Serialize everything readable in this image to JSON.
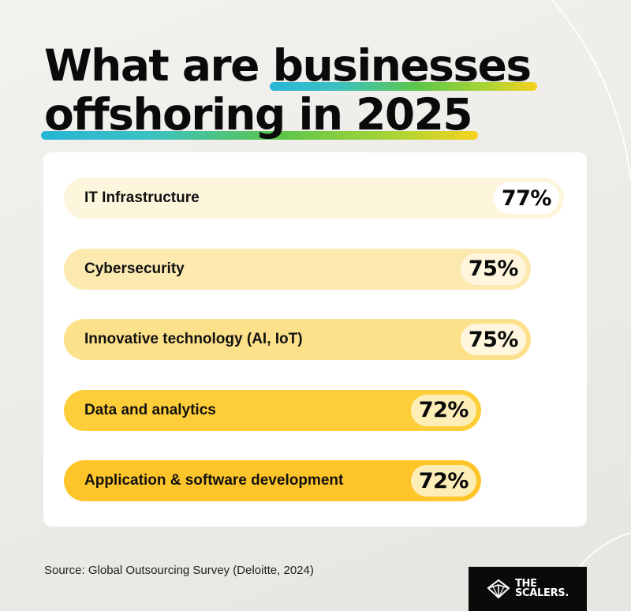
{
  "title": {
    "line1_plain": "What are ",
    "line1_highlight": "businesses",
    "line2_highlight": "offshoring in 2025"
  },
  "chart_data": {
    "type": "bar",
    "orientation": "horizontal",
    "title": "What are businesses offshoring in 2025",
    "categories": [
      "IT Infrastructure",
      "Cybersecurity",
      "Innovative technology (AI, IoT)",
      "Data and analytics",
      "Application & software development"
    ],
    "values": [
      77,
      75,
      75,
      72,
      72
    ],
    "value_labels": [
      "77%",
      "75%",
      "75%",
      "72%",
      "72%"
    ],
    "unit": "%",
    "grid": false,
    "legend": "none",
    "colors": {
      "bars": [
        "#fdf6dc",
        "#fbe9b0",
        "#fde08a",
        "#fece3a",
        "#fec52a"
      ],
      "value_pills": [
        "#ffffff",
        "#fff6dd",
        "#fff6dd",
        "#fdeeb8",
        "#fdeeb8"
      ]
    }
  },
  "source": "Source: Global Outsourcing Survey (Deloitte, 2024)",
  "brand": {
    "line1": "THE",
    "line2": "SCALERS.",
    "logo_icon": "scalers-diamond-icon"
  }
}
